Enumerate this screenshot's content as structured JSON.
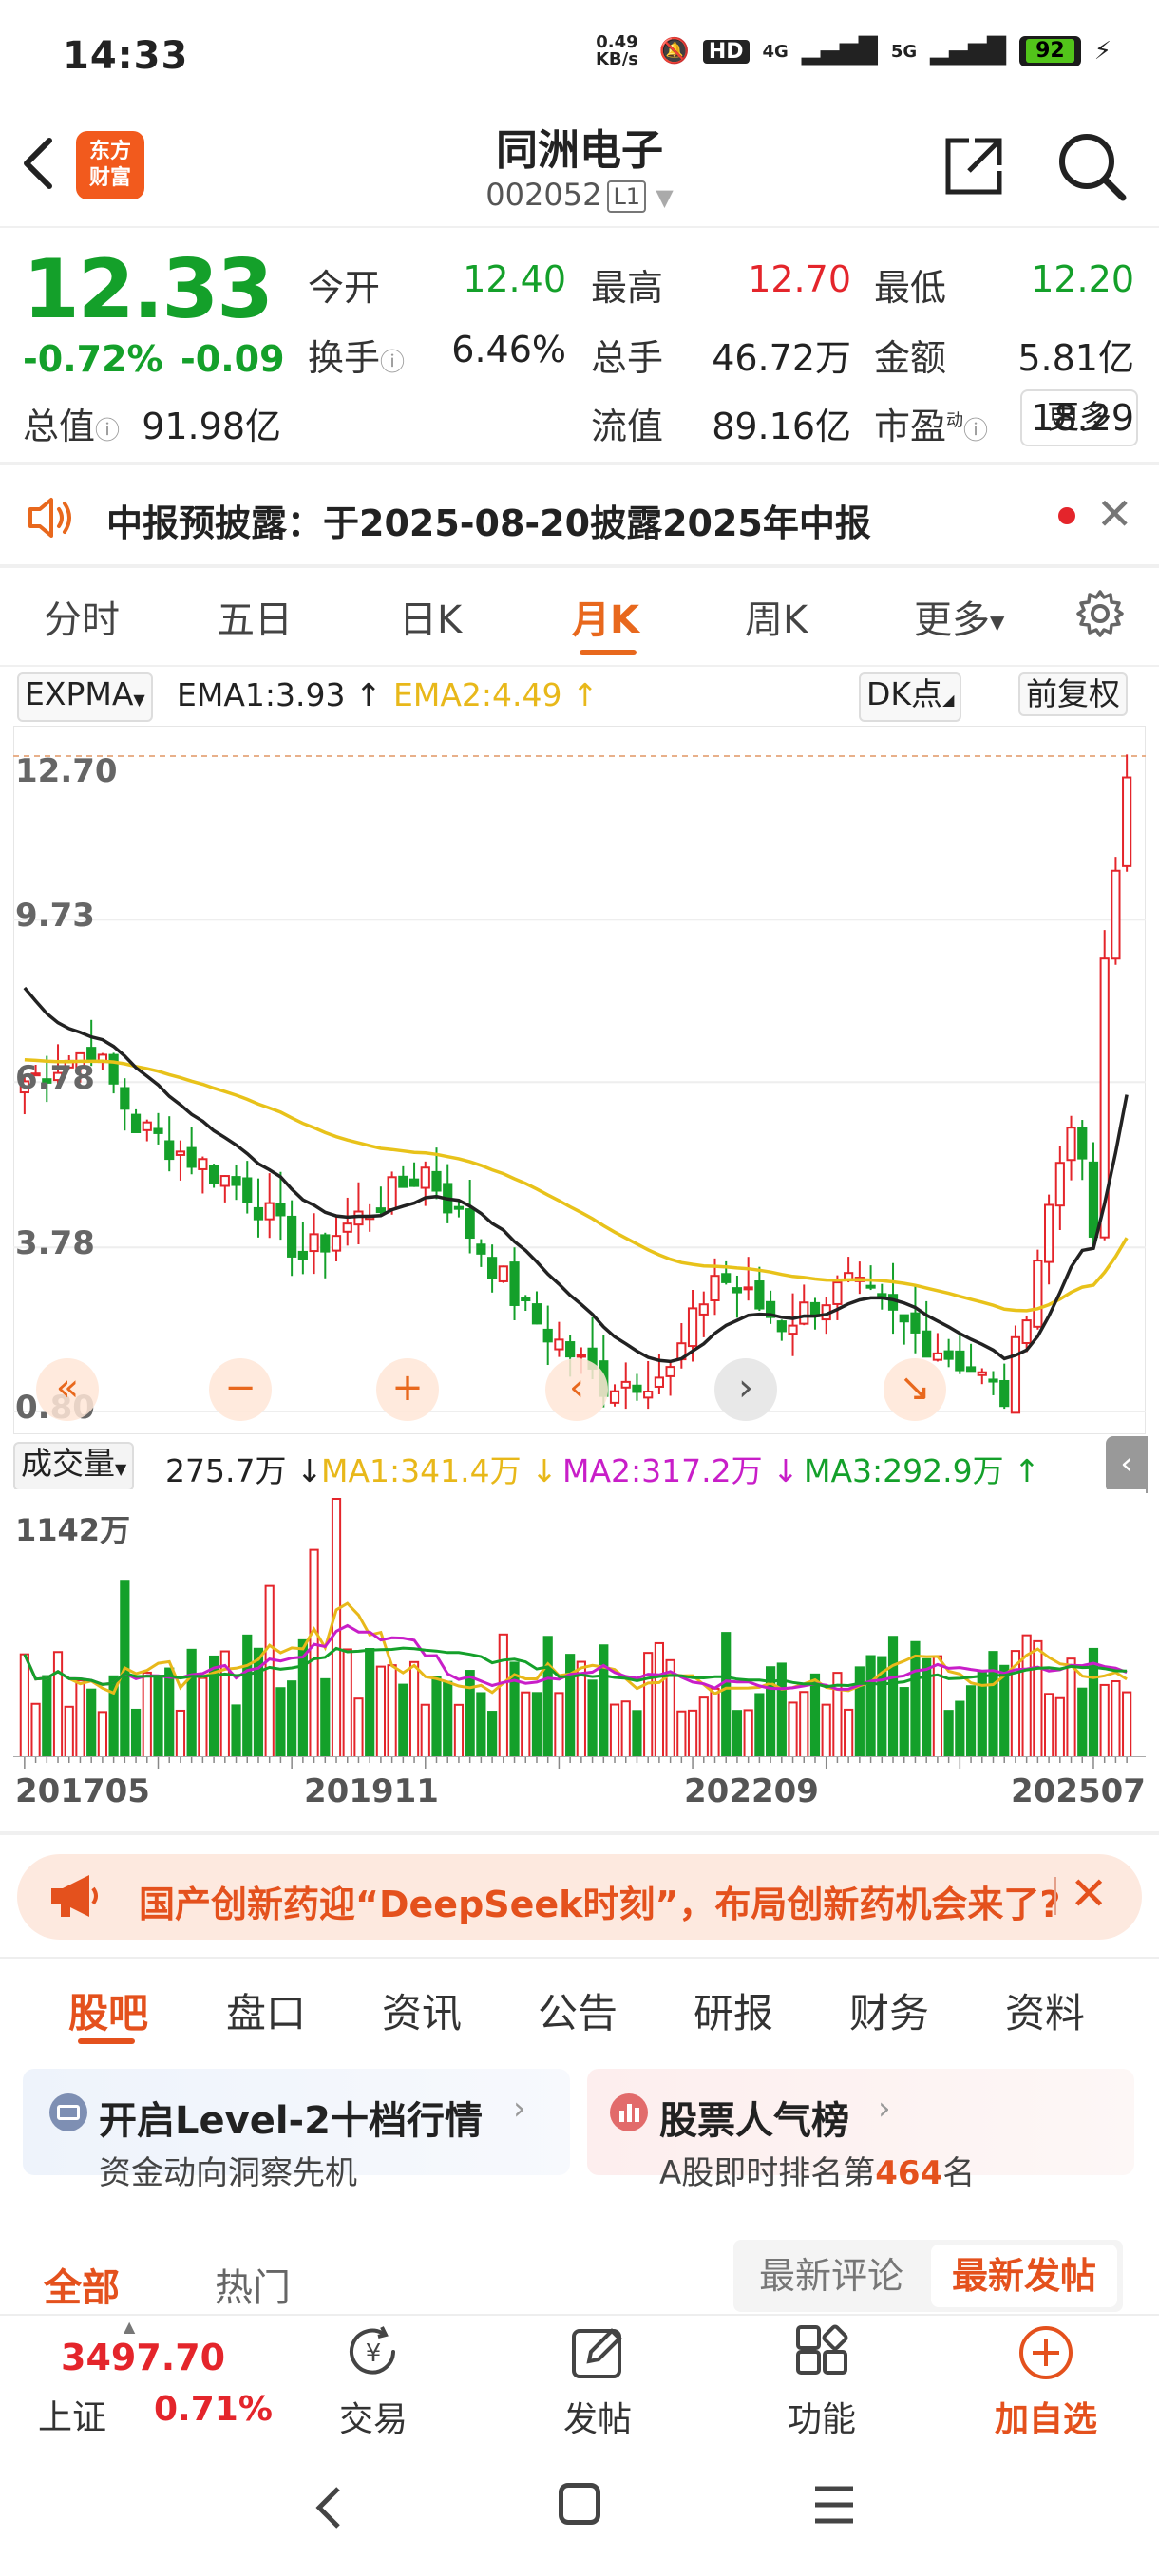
{
  "status": {
    "time": "14:33",
    "net_speed": "0.49 KB/s",
    "hd": "HD",
    "signal1": "4G",
    "signal2": "5G",
    "battery": "92"
  },
  "header": {
    "logo_text_1": "东方",
    "logo_text_2": "财富",
    "stock_name": "同洲电子",
    "stock_code": "002052",
    "level_badge": "L1"
  },
  "quote": {
    "price": "12.33",
    "change_pct": "-0.72%",
    "change_val": "-0.09",
    "fields": [
      {
        "label": "今开",
        "value": "12.40",
        "color": "#14a02a"
      },
      {
        "label": "最高",
        "value": "12.70",
        "color": "#e4252b"
      },
      {
        "label": "最低",
        "value": "12.20",
        "color": "#14a02a"
      },
      {
        "label": "换手",
        "value": "6.46%",
        "color": "#222222"
      },
      {
        "label": "总手",
        "value": "46.72万",
        "color": "#222222"
      },
      {
        "label": "金额",
        "value": "5.81亿",
        "color": "#222222"
      },
      {
        "label": "总值",
        "value": "91.98亿",
        "color": "#222222"
      },
      {
        "label": "流值",
        "value": "89.16亿",
        "color": "#222222"
      },
      {
        "label": "市盈",
        "value": "18.29",
        "color": "#222222"
      }
    ],
    "pe_superscript": "动",
    "more_label": "更多"
  },
  "notice": {
    "text": "中报预披露：于2025-08-20披露2025年中报"
  },
  "chart_tabs": [
    "分时",
    "五日",
    "日K",
    "月K",
    "周K",
    "更多"
  ],
  "active_chart_tab": "月K",
  "indicator": {
    "name": "EXPMA",
    "ema1": "EMA1:3.93",
    "ema2": "EMA2:4.49",
    "dk_label": "DK点",
    "adjust_label": "前复权"
  },
  "chart_data": {
    "type": "candlestick",
    "y_ticks": [
      "12.70",
      "9.73",
      "6.78",
      "3.78",
      "0.80"
    ],
    "ylim": [
      0.8,
      12.7
    ],
    "x_ticks": [
      "201705",
      "201911",
      "202209",
      "202507"
    ],
    "ema1_color": "#222222",
    "ema2_color": "#e8c21a",
    "up_color": "#e4252b",
    "down_color": "#14a02a"
  },
  "volume": {
    "label": "成交量",
    "current": "275.7万",
    "ma1": "MA1:341.4万",
    "ma2": "MA2:317.2万",
    "ma3": "MA3:292.9万",
    "max_label": "1142万",
    "ma1_color": "#e8b81a",
    "ma2_color": "#c81ec8",
    "ma3_color": "#14a02a"
  },
  "banner": {
    "text": "国产创新药迎“DeepSeek时刻”，布局创新药机会来了?"
  },
  "content_tabs": [
    "股吧",
    "盘口",
    "资讯",
    "公告",
    "研报",
    "财务",
    "资料"
  ],
  "cards": {
    "level2_title": "开启Level-2十档行情",
    "level2_sub": "资金动向洞察先机",
    "rank_title": "股票人气榜",
    "rank_sub_prefix": "A股即时排名第",
    "rank_num": "464",
    "rank_sub_suffix": "名"
  },
  "sub_tabs": {
    "all": "全部",
    "hot": "热门",
    "latest_comment": "最新评论",
    "latest_post": "最新发帖"
  },
  "bottom_nav": {
    "index_value": "3497.70",
    "index_name": "上证",
    "index_pct": "0.71%",
    "trade": "交易",
    "post": "发帖",
    "function": "功能",
    "add_watch": "加自选"
  }
}
